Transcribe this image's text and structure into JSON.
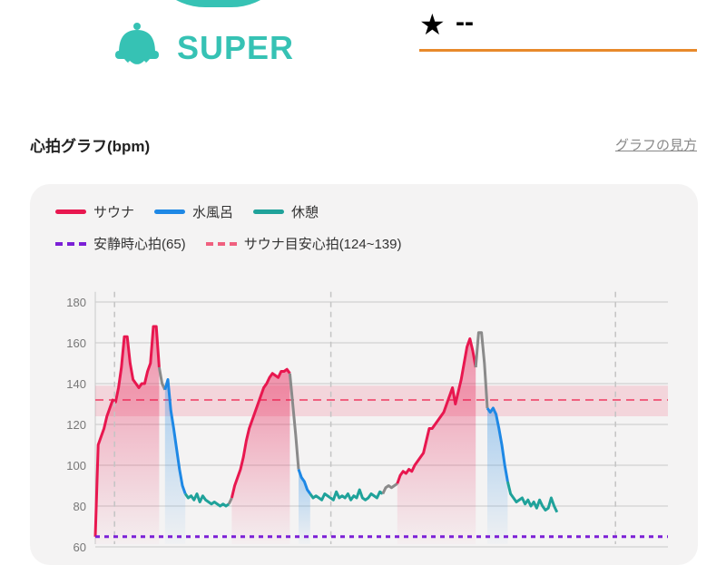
{
  "badge": {
    "label": "SUPER",
    "color": "#36c2b4"
  },
  "rating": {
    "star": "★",
    "value": "--"
  },
  "section": {
    "title": "心拍グラフ(bpm)",
    "help_link": "グラフの見方"
  },
  "legend": {
    "sauna": "サウナ",
    "cold_bath": "水風呂",
    "rest": "休憩",
    "resting_hr": "安静時心拍(65)",
    "sauna_target": "サウナ目安心拍(124~139)"
  },
  "colors": {
    "sauna": "#e8174f",
    "cold_bath": "#1e88e5",
    "rest": "#1fa29a",
    "transition": "#8a8a8a",
    "resting_hr": "#7b1fd6",
    "sauna_target": "#f0607f",
    "accent_orange": "#e8892b"
  },
  "chart_data": {
    "type": "line",
    "ylabel": "",
    "xlabel": "",
    "ylim": [
      60,
      185
    ],
    "y_ticks": [
      60,
      80,
      100,
      120,
      140,
      160,
      180
    ],
    "resting_hr": 65,
    "target_band": [
      124,
      139
    ],
    "target_line": 132,
    "series": [
      {
        "name": "サウナ",
        "segment": 1,
        "y": [
          65,
          110,
          114,
          118,
          124,
          128,
          132,
          131,
          138,
          148,
          163,
          163,
          150,
          142,
          140,
          138,
          140,
          140,
          146,
          150,
          168,
          168,
          148
        ]
      },
      {
        "name": "",
        "kind": "transition",
        "y": [
          148,
          140,
          137
        ]
      },
      {
        "name": "水風呂",
        "segment": 1,
        "y": [
          137,
          142,
          127,
          118,
          108,
          98,
          90,
          86
        ]
      },
      {
        "name": "休憩",
        "segment": 1,
        "y": [
          86,
          84,
          85,
          83,
          86,
          82,
          85,
          83,
          82,
          81,
          82,
          81,
          80,
          81,
          80,
          81
        ]
      },
      {
        "name": "",
        "kind": "transition",
        "y": [
          81,
          84
        ]
      },
      {
        "name": "サウナ",
        "segment": 2,
        "y": [
          84,
          90,
          94,
          98,
          104,
          112,
          118,
          122,
          126,
          130,
          134,
          138,
          140,
          143,
          145,
          144,
          143,
          146,
          146,
          147,
          145
        ]
      },
      {
        "name": "",
        "kind": "transition",
        "y": [
          145,
          130,
          115,
          98
        ]
      },
      {
        "name": "水風呂",
        "segment": 2,
        "y": [
          98,
          94,
          92,
          88,
          86
        ]
      },
      {
        "name": "休憩",
        "segment": 2,
        "y": [
          86,
          84,
          85,
          84,
          83,
          86,
          85,
          84,
          83,
          87,
          84,
          85,
          84,
          86,
          83,
          85,
          84,
          88,
          84,
          83,
          84,
          86,
          85,
          84,
          87,
          86
        ]
      },
      {
        "name": "",
        "kind": "transition",
        "y": [
          86,
          89,
          90,
          89,
          90,
          91
        ]
      },
      {
        "name": "サウナ",
        "segment": 3,
        "y": [
          91,
          95,
          97,
          96,
          98,
          97,
          100,
          102,
          104,
          106,
          112,
          118,
          118,
          120,
          122,
          124,
          126,
          130,
          134,
          138,
          130,
          136,
          142,
          150,
          158,
          162,
          156,
          148
        ]
      },
      {
        "name": "",
        "kind": "transition",
        "y": [
          148,
          165,
          165,
          150,
          128
        ]
      },
      {
        "name": "水風呂",
        "segment": 3,
        "y": [
          128,
          126,
          128,
          125,
          118,
          110,
          100,
          92
        ]
      },
      {
        "name": "休憩",
        "segment": 3,
        "y": [
          92,
          86,
          84,
          82,
          83,
          84,
          81,
          83,
          80,
          82,
          79,
          83,
          80,
          78,
          79,
          84,
          80,
          77
        ]
      }
    ],
    "phase_dividers": [
      3.5,
      78,
      176
    ]
  }
}
